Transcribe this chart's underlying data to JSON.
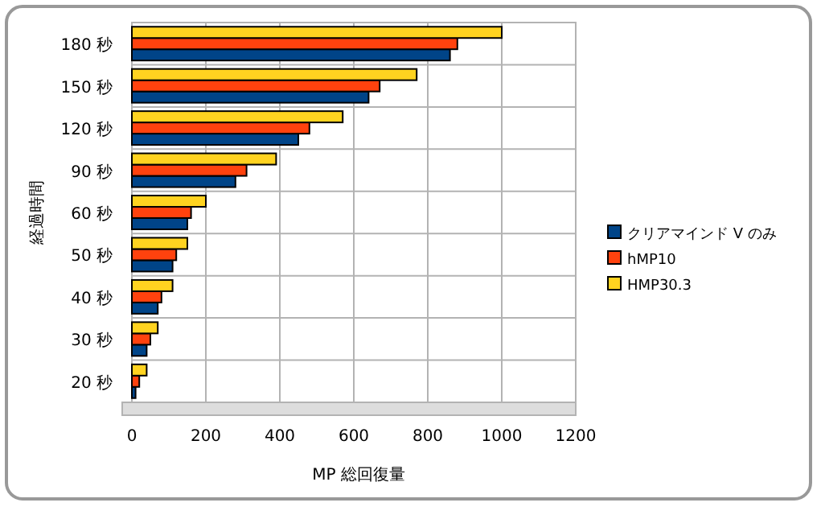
{
  "chart_data": {
    "type": "bar",
    "orientation": "horizontal",
    "xlabel": "MP 総回復量",
    "ylabel": "経過時間",
    "categories": [
      "180 秒",
      "150 秒",
      "120 秒",
      "90 秒",
      "60 秒",
      "50 秒",
      "40 秒",
      "30 秒",
      "20 秒"
    ],
    "series": [
      {
        "name": "クリアマインド V のみ",
        "color": "#004488",
        "values": [
          860,
          640,
          450,
          280,
          150,
          110,
          70,
          40,
          10
        ]
      },
      {
        "name": "hMP10",
        "color": "#ff420e",
        "values": [
          880,
          670,
          480,
          310,
          160,
          120,
          80,
          50,
          20
        ]
      },
      {
        "name": "HMP30.3",
        "color": "#ffd320",
        "values": [
          1000,
          770,
          570,
          390,
          200,
          150,
          110,
          70,
          40
        ]
      }
    ],
    "xlim": [
      0,
      1200
    ],
    "xticks": [
      0,
      200,
      400,
      600,
      800,
      1000,
      1200
    ],
    "grid": true,
    "legend": "right"
  }
}
